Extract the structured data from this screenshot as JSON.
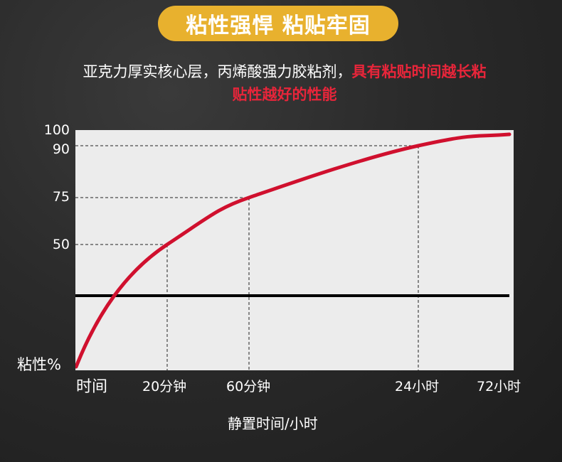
{
  "banner": {
    "title": "粘性强悍 粘贴牢固"
  },
  "description": {
    "line1_plain": "亚克力厚实核心层，丙烯酸强力胶粘剂，",
    "line1_highlight": "具有粘贴时间越长粘",
    "line2_highlight": "贴性越好的性能"
  },
  "colors": {
    "banner": "#e8b12e",
    "curve": "#d0102e",
    "highlight": "#e8253a",
    "plot_bg": "#ececec"
  },
  "chart_data": {
    "type": "line",
    "ylabel": "粘性%",
    "xlabel": "静置时间/小时",
    "x_origin_label": "时间",
    "x_ticks": [
      "20分钟",
      "60分钟",
      "24小时",
      "72小时"
    ],
    "y_ticks": [
      100,
      90,
      75,
      50
    ],
    "ylim": [
      0,
      100
    ],
    "series": [
      {
        "x": [
          "20分钟",
          "60分钟",
          "24小时"
        ],
        "values": [
          50,
          75,
          90
        ]
      }
    ],
    "baseline_y": 28,
    "grid": "dashed guide lines at data points"
  }
}
